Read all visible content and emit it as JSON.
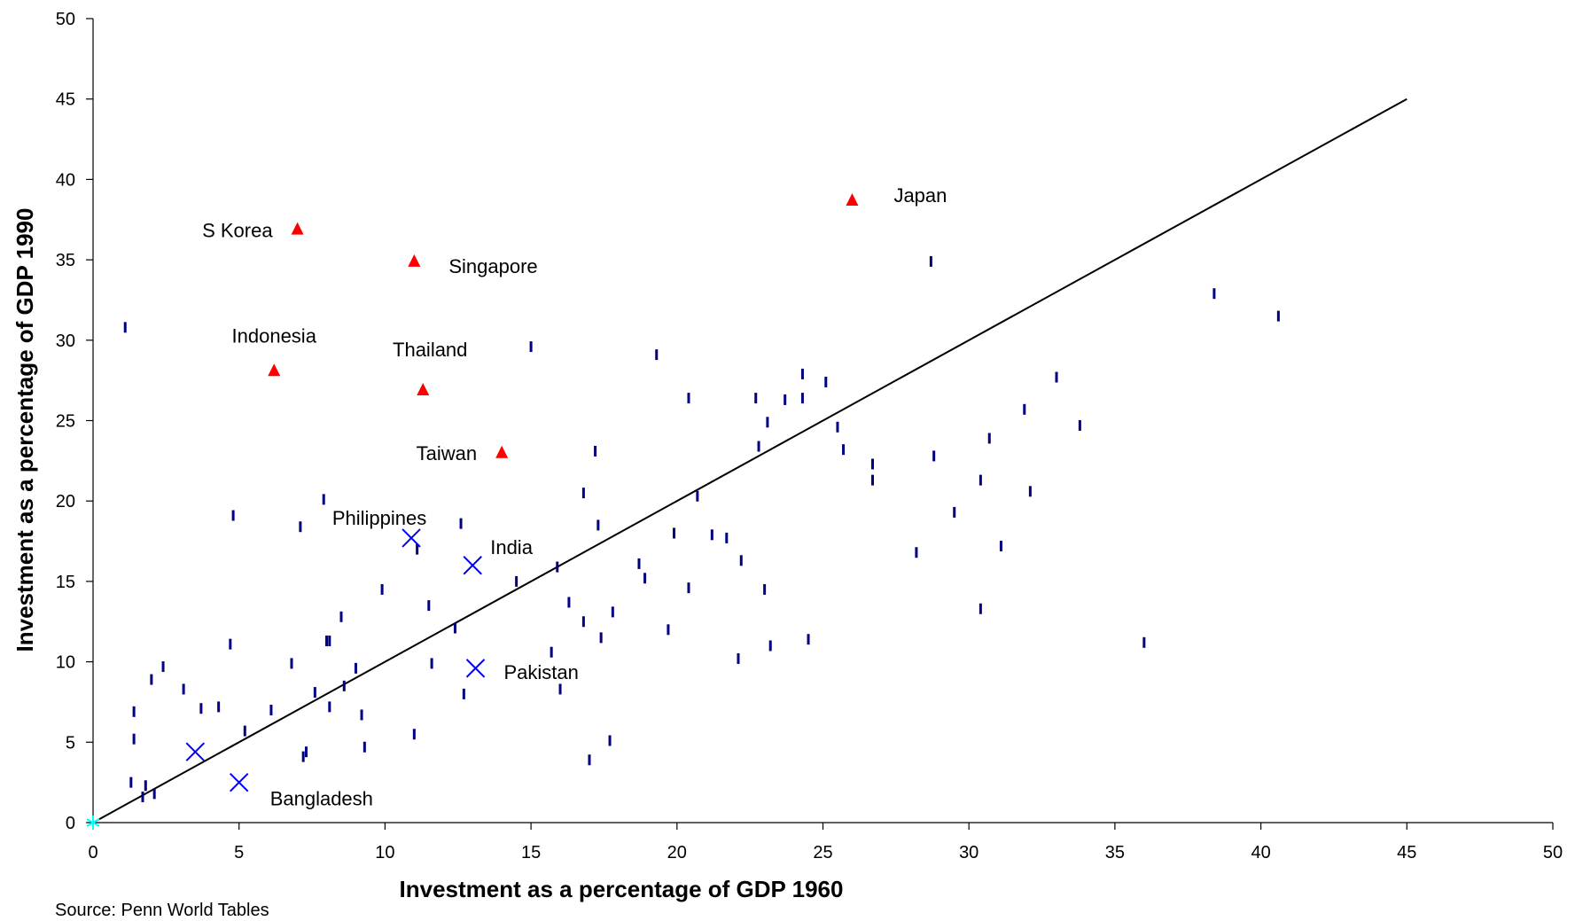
{
  "chart_data": {
    "type": "scatter",
    "title": "",
    "xlabel": "Investment as a percentage of GDP 1960",
    "ylabel": "Investment as a percentage of GDP 1990",
    "xlim": [
      0,
      50
    ],
    "ylim": [
      0,
      50
    ],
    "x_ticks": [
      0,
      5,
      10,
      15,
      20,
      25,
      30,
      35,
      40,
      45,
      50
    ],
    "y_ticks": [
      0,
      5,
      10,
      15,
      20,
      25,
      30,
      35,
      40,
      45,
      50
    ],
    "grid": false,
    "legend": "none",
    "reference_line": {
      "x": [
        0,
        45
      ],
      "y": [
        0,
        45
      ],
      "color": "#000000"
    },
    "series": [
      {
        "marker": "triangle",
        "color": "#ff0000",
        "points": [
          {
            "x": 7.0,
            "y": 36.9,
            "label": "S Korea"
          },
          {
            "x": 11.0,
            "y": 34.9,
            "label": "Singapore"
          },
          {
            "x": 26.0,
            "y": 38.7,
            "label": "Japan"
          },
          {
            "x": 6.2,
            "y": 28.1,
            "label": "Indonesia"
          },
          {
            "x": 11.3,
            "y": 26.9,
            "label": "Thailand"
          },
          {
            "x": 14.0,
            "y": 23.0,
            "label": "Taiwan"
          }
        ]
      },
      {
        "marker": "x",
        "color": "#0000ff",
        "points": [
          {
            "x": 10.9,
            "y": 17.7,
            "label": "Philippines"
          },
          {
            "x": 13.0,
            "y": 16.0,
            "label": "India"
          },
          {
            "x": 13.1,
            "y": 9.6,
            "label": "Pakistan"
          },
          {
            "x": 5.0,
            "y": 2.5,
            "label": "Bangladesh"
          },
          {
            "x": 3.5,
            "y": 4.4,
            "label": ""
          }
        ]
      },
      {
        "marker": "dash",
        "color": "#000080",
        "points": [
          {
            "x": 1.1,
            "y": 30.8
          },
          {
            "x": 1.3,
            "y": 2.5
          },
          {
            "x": 1.4,
            "y": 6.9
          },
          {
            "x": 1.4,
            "y": 5.2
          },
          {
            "x": 1.7,
            "y": 1.6
          },
          {
            "x": 1.8,
            "y": 2.3
          },
          {
            "x": 2.0,
            "y": 8.9
          },
          {
            "x": 2.1,
            "y": 1.8
          },
          {
            "x": 2.4,
            "y": 9.7
          },
          {
            "x": 3.1,
            "y": 8.3
          },
          {
            "x": 3.7,
            "y": 7.1
          },
          {
            "x": 4.3,
            "y": 7.2
          },
          {
            "x": 4.7,
            "y": 11.1
          },
          {
            "x": 4.8,
            "y": 19.1
          },
          {
            "x": 5.2,
            "y": 5.7
          },
          {
            "x": 6.1,
            "y": 7.0
          },
          {
            "x": 6.8,
            "y": 9.9
          },
          {
            "x": 7.1,
            "y": 18.4
          },
          {
            "x": 7.2,
            "y": 4.1
          },
          {
            "x": 7.3,
            "y": 4.4
          },
          {
            "x": 7.6,
            "y": 8.1
          },
          {
            "x": 7.9,
            "y": 20.1
          },
          {
            "x": 8.0,
            "y": 11.3
          },
          {
            "x": 8.1,
            "y": 7.2
          },
          {
            "x": 8.1,
            "y": 11.3
          },
          {
            "x": 8.5,
            "y": 12.8
          },
          {
            "x": 8.6,
            "y": 8.5
          },
          {
            "x": 9.0,
            "y": 9.6
          },
          {
            "x": 9.2,
            "y": 6.7
          },
          {
            "x": 9.3,
            "y": 4.7
          },
          {
            "x": 9.9,
            "y": 14.5
          },
          {
            "x": 11.0,
            "y": 5.5
          },
          {
            "x": 11.1,
            "y": 17.0
          },
          {
            "x": 11.5,
            "y": 13.5
          },
          {
            "x": 11.6,
            "y": 9.9
          },
          {
            "x": 12.4,
            "y": 12.1
          },
          {
            "x": 12.6,
            "y": 18.6
          },
          {
            "x": 12.7,
            "y": 8.0
          },
          {
            "x": 14.5,
            "y": 15.0
          },
          {
            "x": 15.0,
            "y": 29.6
          },
          {
            "x": 15.7,
            "y": 10.6
          },
          {
            "x": 15.9,
            "y": 15.9
          },
          {
            "x": 16.0,
            "y": 8.3
          },
          {
            "x": 16.3,
            "y": 13.7
          },
          {
            "x": 16.8,
            "y": 12.5
          },
          {
            "x": 16.8,
            "y": 20.5
          },
          {
            "x": 17.0,
            "y": 3.9
          },
          {
            "x": 17.2,
            "y": 23.1
          },
          {
            "x": 17.3,
            "y": 18.5
          },
          {
            "x": 17.4,
            "y": 11.5
          },
          {
            "x": 17.7,
            "y": 5.1
          },
          {
            "x": 17.8,
            "y": 13.1
          },
          {
            "x": 18.7,
            "y": 16.1
          },
          {
            "x": 18.9,
            "y": 15.2
          },
          {
            "x": 19.3,
            "y": 29.1
          },
          {
            "x": 19.7,
            "y": 12.0
          },
          {
            "x": 19.9,
            "y": 18.0
          },
          {
            "x": 20.4,
            "y": 26.4
          },
          {
            "x": 20.4,
            "y": 14.6
          },
          {
            "x": 20.7,
            "y": 20.3
          },
          {
            "x": 21.2,
            "y": 17.9
          },
          {
            "x": 21.7,
            "y": 17.7
          },
          {
            "x": 22.1,
            "y": 10.2
          },
          {
            "x": 22.2,
            "y": 16.3
          },
          {
            "x": 22.7,
            "y": 26.4
          },
          {
            "x": 22.8,
            "y": 23.4
          },
          {
            "x": 23.0,
            "y": 14.5
          },
          {
            "x": 23.1,
            "y": 24.9
          },
          {
            "x": 23.2,
            "y": 11.0
          },
          {
            "x": 23.7,
            "y": 26.3
          },
          {
            "x": 24.3,
            "y": 27.9
          },
          {
            "x": 24.3,
            "y": 26.4
          },
          {
            "x": 24.5,
            "y": 11.4
          },
          {
            "x": 25.1,
            "y": 27.4
          },
          {
            "x": 25.5,
            "y": 24.6
          },
          {
            "x": 25.7,
            "y": 23.2
          },
          {
            "x": 26.7,
            "y": 22.3
          },
          {
            "x": 26.7,
            "y": 21.3
          },
          {
            "x": 28.2,
            "y": 16.8
          },
          {
            "x": 28.7,
            "y": 34.9
          },
          {
            "x": 28.8,
            "y": 22.8
          },
          {
            "x": 29.5,
            "y": 19.3
          },
          {
            "x": 30.4,
            "y": 21.3
          },
          {
            "x": 30.4,
            "y": 13.3
          },
          {
            "x": 30.7,
            "y": 23.9
          },
          {
            "x": 31.1,
            "y": 17.2
          },
          {
            "x": 31.9,
            "y": 25.7
          },
          {
            "x": 32.1,
            "y": 20.6
          },
          {
            "x": 33.0,
            "y": 27.7
          },
          {
            "x": 33.8,
            "y": 24.7
          },
          {
            "x": 36.0,
            "y": 11.2
          },
          {
            "x": 38.4,
            "y": 32.9
          },
          {
            "x": 40.6,
            "y": 31.5
          }
        ]
      },
      {
        "marker": "asterisk",
        "color": "#00ffff",
        "points": [
          {
            "x": 0,
            "y": 0
          }
        ]
      }
    ]
  },
  "footer": {
    "source": "Source: Penn World Tables"
  }
}
